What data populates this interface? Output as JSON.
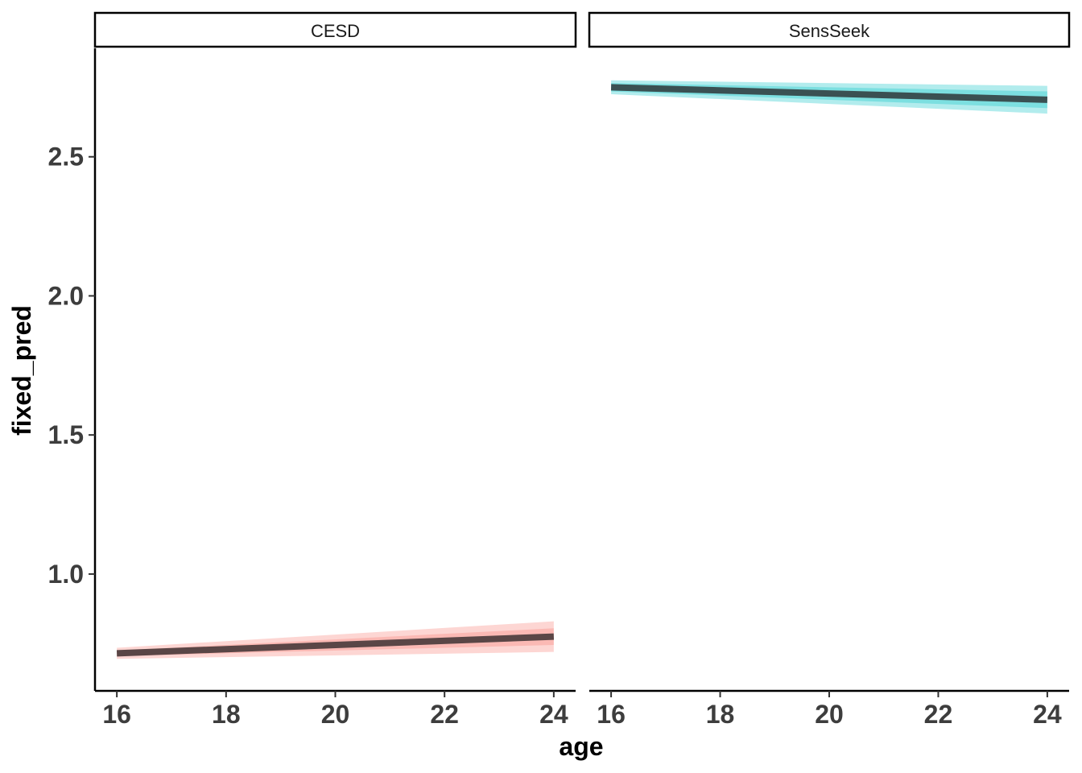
{
  "chart_data": {
    "type": "line",
    "facet_by": "variable",
    "xlabel": "age",
    "ylabel": "fixed_pred",
    "xlim": [
      15.6,
      24.4
    ],
    "ylim": [
      0.58,
      2.89
    ],
    "x_ticks": [
      16,
      18,
      20,
      22,
      24
    ],
    "y_ticks": [
      1.0,
      1.5,
      2.0,
      2.5
    ],
    "grid": false,
    "legend": "none",
    "panels": [
      {
        "strip_label": "CESD",
        "band_color": "#f8766d",
        "line_color": "#5a4646",
        "x": [
          16,
          24
        ],
        "y": [
          0.715,
          0.775
        ],
        "band_inner": {
          "lower": [
            0.705,
            0.745
          ],
          "upper": [
            0.725,
            0.805
          ]
        },
        "band_outer": {
          "lower": [
            0.695,
            0.72
          ],
          "upper": [
            0.735,
            0.83
          ]
        }
      },
      {
        "strip_label": "SensSeek",
        "band_color": "#00bfc4",
        "line_color": "#3a5052",
        "x": [
          16,
          24
        ],
        "y": [
          2.75,
          2.705
        ],
        "band_inner": {
          "lower": [
            2.735,
            2.675
          ],
          "upper": [
            2.765,
            2.735
          ]
        },
        "band_outer": {
          "lower": [
            2.725,
            2.655
          ],
          "upper": [
            2.775,
            2.755
          ]
        }
      }
    ]
  }
}
